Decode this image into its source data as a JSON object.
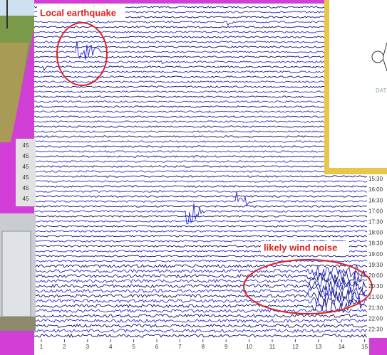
{
  "annotations": {
    "earthquake": "Local earthquake",
    "wind": "likely wind noise"
  },
  "x_axis": {
    "ticks": [
      1,
      2,
      3,
      4,
      5,
      6,
      7,
      8,
      9,
      10,
      11,
      12,
      13,
      14,
      15
    ]
  },
  "time_labels": [
    "15:30",
    "16:00",
    "16:30",
    "17:00",
    "17:30",
    "18:00",
    "18:30",
    "19:00",
    "19:30",
    "20:00",
    "20:30",
    "21:00",
    "21:30",
    "22:00",
    "22:30"
  ],
  "left_labels": [
    "45",
    "45",
    "45",
    "45",
    "45",
    "45"
  ],
  "inset": {
    "caption": "DAT"
  }
}
